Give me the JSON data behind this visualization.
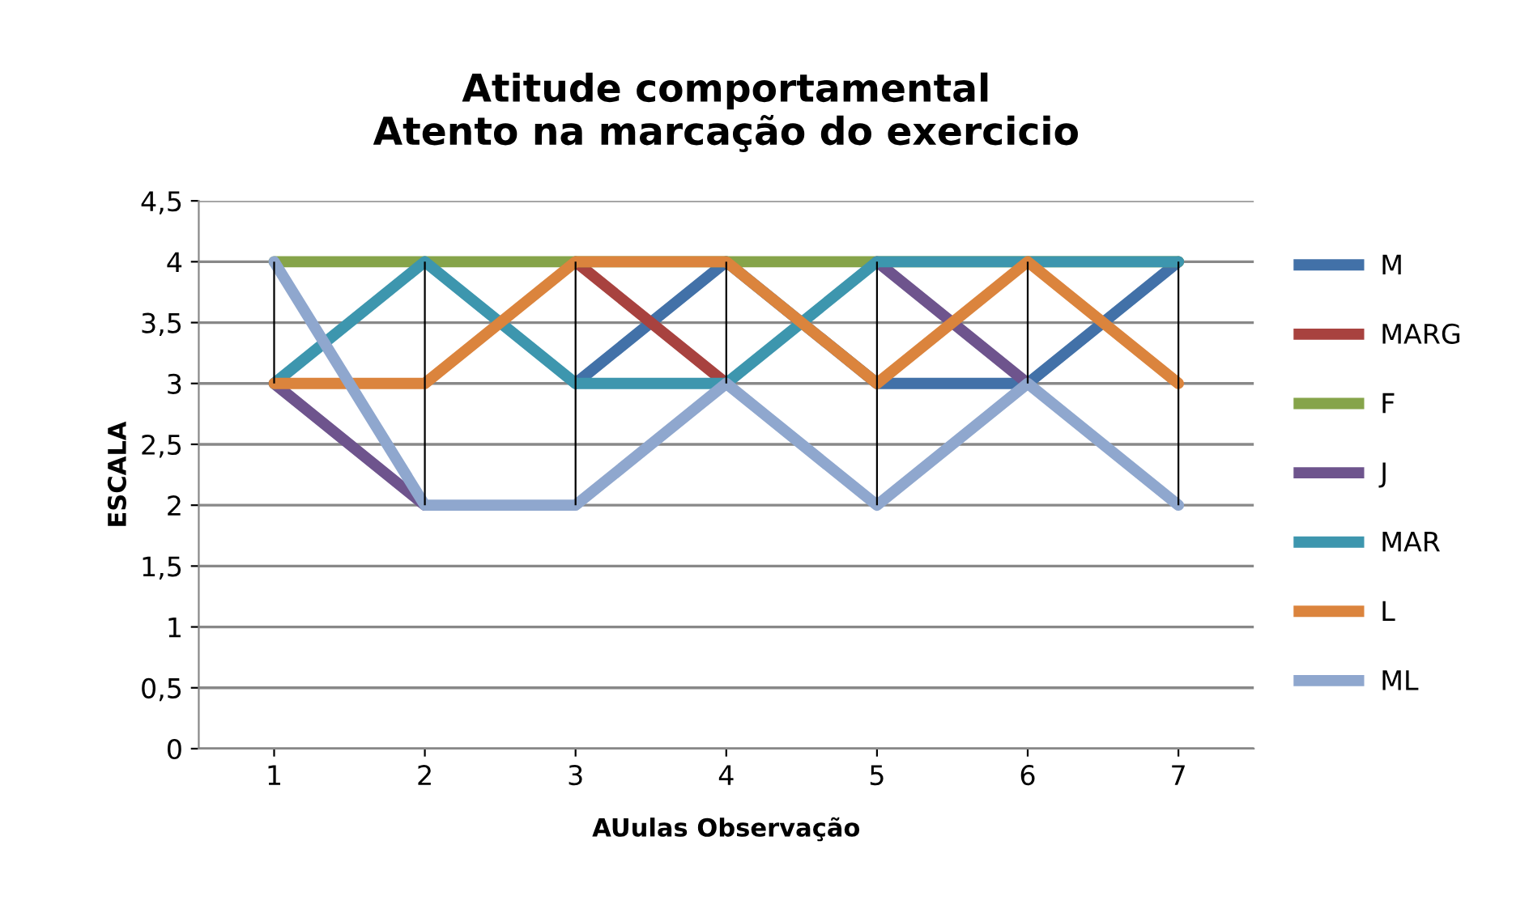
{
  "chart_data": {
    "type": "line",
    "title": "Atitude comportamental\nAtento na marcação do exercicio",
    "xlabel": "AUulas Observação",
    "ylabel": "ESCALA",
    "categories": [
      "1",
      "2",
      "3",
      "4",
      "5",
      "6",
      "7"
    ],
    "series": [
      {
        "name": "M",
        "color": "#4271a8",
        "values": [
          null,
          null,
          3,
          4,
          3,
          3,
          4
        ]
      },
      {
        "name": "MARG",
        "color": "#a8423f",
        "values": [
          null,
          null,
          4,
          3,
          null,
          null,
          null
        ]
      },
      {
        "name": "F",
        "color": "#86a44a",
        "values": [
          4,
          4,
          4,
          4,
          4,
          4,
          4
        ]
      },
      {
        "name": "J",
        "color": "#6e548d",
        "values": [
          3,
          2,
          null,
          null,
          4,
          3,
          null
        ]
      },
      {
        "name": "MAR",
        "color": "#3d96ae",
        "values": [
          3,
          4,
          3,
          3,
          4,
          4,
          4
        ]
      },
      {
        "name": "L",
        "color": "#db843d",
        "values": [
          3,
          3,
          4,
          4,
          3,
          4,
          3
        ]
      },
      {
        "name": "ML",
        "color": "#8fa7ce",
        "values": [
          4,
          2,
          2,
          3,
          2,
          3,
          2
        ]
      },
      {
        "type": "bar",
        "color": "#000000",
        "base": [
          3,
          2,
          2,
          3,
          2,
          3,
          2
        ],
        "values": [
          1,
          2,
          2,
          1,
          2,
          1,
          2
        ]
      }
    ],
    "ylim": [
      0,
      4.5
    ],
    "yticks": [
      0,
      {
        "value": 0.5,
        "label": "0,5"
      },
      1,
      {
        "value": 1.5,
        "label": "1,5"
      },
      2,
      {
        "value": 2.5,
        "label": "2,5"
      },
      3,
      {
        "value": 3.5,
        "label": "3,5"
      },
      4,
      {
        "value": 4.5,
        "label": "4,5"
      }
    ],
    "grid": "y",
    "legend": "right",
    "marker": "none",
    "line_style": "solid"
  }
}
